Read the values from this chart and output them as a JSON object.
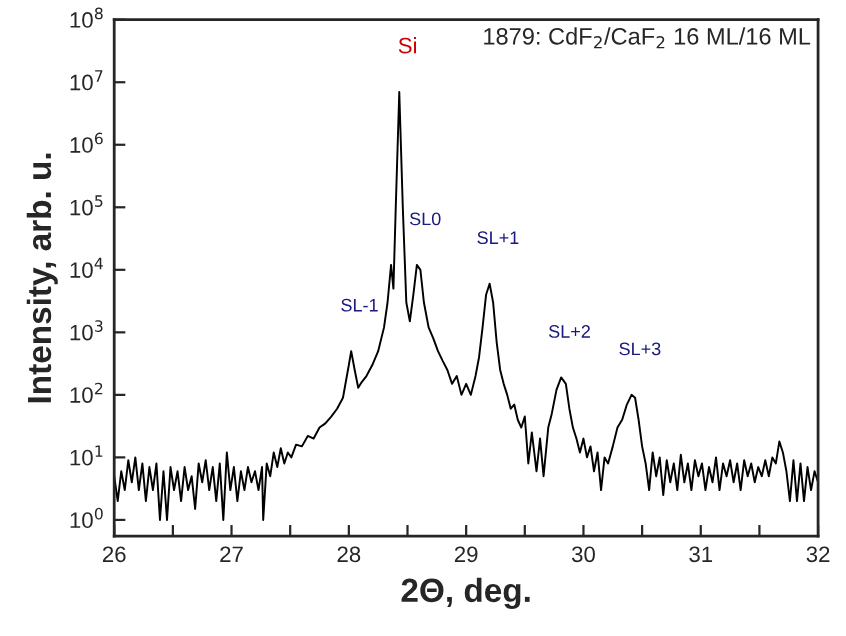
{
  "chart_data": {
    "type": "line",
    "title": "1879: CdF$_{2}$/CaF$_{2}$ 16 ML/16 ML",
    "xlabel": "2Θ, deg.",
    "ylabel": "Intensity, arb. u.",
    "log": "y",
    "grid": false,
    "legend": false,
    "marker": "none",
    "line_style": "solid",
    "xlim": [
      26,
      32
    ],
    "xticks": [
      26,
      {
        "value": 26.5,
        "label": null
      },
      27,
      {
        "value": 27.5,
        "label": null
      },
      28,
      {
        "value": 28.5,
        "label": null
      },
      29,
      {
        "value": 29.5,
        "label": null
      },
      30,
      {
        "value": 30.5,
        "label": null
      },
      31,
      {
        "value": 31.5,
        "label": null
      },
      32
    ],
    "ylim": [
      0.55,
      100000000
    ],
    "yticks": [
      {
        "value": 1,
        "label": "10$^{0}$"
      },
      {
        "value": 10,
        "label": "10$^{1}$"
      },
      {
        "value": 100,
        "label": "10$^{2}$"
      },
      {
        "value": 1000,
        "label": "10$^{3}$"
      },
      {
        "value": 10000,
        "label": "10$^{4}$"
      },
      {
        "value": 100000,
        "label": "10$^{5}$"
      },
      {
        "value": 1000000,
        "label": "10$^{6}$"
      },
      {
        "value": 10000000,
        "label": "10$^{7}$"
      },
      {
        "value": 100000000,
        "label": "10$^{8}$"
      }
    ],
    "annotations": [
      {
        "text": "Si",
        "x": 28.43,
        "y": 7000000
      },
      {
        "text": "SL-1",
        "x": 28.02,
        "y": 500
      },
      {
        "text": "SL0",
        "x": 28.58,
        "y": 12000
      },
      {
        "text": "SL+1",
        "x": 29.2,
        "y": 6000
      },
      {
        "text": "SL+2",
        "x": 29.81,
        "y": 190
      },
      {
        "text": "SL+3",
        "x": 30.41,
        "y": 100
      }
    ],
    "series": [
      {
        "color": "#000000",
        "x": [
          26.0,
          26.03,
          26.06,
          26.09,
          26.12,
          26.15,
          26.18,
          26.21,
          26.24,
          26.27,
          26.3,
          26.33,
          26.36,
          26.39,
          26.42,
          26.45,
          26.48,
          26.51,
          26.54,
          26.57,
          26.6,
          26.63,
          26.66,
          26.69,
          26.72,
          26.75,
          26.78,
          26.81,
          26.84,
          26.87,
          26.9,
          26.93,
          26.96,
          26.99,
          27.02,
          27.05,
          27.08,
          27.11,
          27.14,
          27.17,
          27.2,
          27.23,
          27.26,
          27.27,
          27.3,
          27.33,
          27.36,
          27.39,
          27.42,
          27.45,
          27.48,
          27.51,
          27.55,
          27.6,
          27.65,
          27.7,
          27.75,
          27.8,
          27.85,
          27.9,
          27.95,
          28.0,
          28.02,
          28.05,
          28.08,
          28.11,
          28.15,
          28.2,
          28.25,
          28.3,
          28.33,
          28.36,
          28.38,
          28.4,
          28.43,
          28.46,
          28.49,
          28.52,
          28.55,
          28.58,
          28.61,
          28.64,
          28.68,
          28.72,
          28.76,
          28.8,
          28.84,
          28.88,
          28.92,
          28.96,
          29.0,
          29.04,
          29.08,
          29.11,
          29.14,
          29.17,
          29.2,
          29.23,
          29.26,
          29.29,
          29.32,
          29.35,
          29.38,
          29.41,
          29.44,
          29.47,
          29.5,
          29.53,
          29.56,
          29.6,
          29.63,
          29.66,
          29.7,
          29.73,
          29.77,
          29.81,
          29.85,
          29.88,
          29.91,
          29.94,
          29.97,
          30.0,
          30.03,
          30.06,
          30.09,
          30.12,
          30.15,
          30.18,
          30.21,
          30.25,
          30.29,
          30.33,
          30.37,
          30.41,
          30.44,
          30.47,
          30.5,
          30.53,
          30.56,
          30.59,
          30.62,
          30.65,
          30.68,
          30.71,
          30.74,
          30.77,
          30.8,
          30.83,
          30.86,
          30.89,
          30.92,
          30.95,
          30.98,
          31.01,
          31.04,
          31.07,
          31.1,
          31.13,
          31.16,
          31.19,
          31.22,
          31.25,
          31.28,
          31.31,
          31.34,
          31.37,
          31.4,
          31.43,
          31.46,
          31.49,
          31.52,
          31.55,
          31.58,
          31.61,
          31.64,
          31.67,
          31.7,
          31.73,
          31.76,
          31.79,
          31.82,
          31.85,
          31.88,
          31.91,
          31.94,
          31.97,
          32.0
        ],
        "values": [
          5,
          2,
          6,
          3,
          9,
          4,
          10,
          3,
          8,
          2,
          7,
          3,
          8,
          1,
          6,
          1,
          7,
          3,
          6,
          2,
          7,
          3,
          5,
          1.5,
          8,
          4,
          9,
          3,
          7,
          2,
          8,
          1,
          12,
          3,
          7,
          2,
          6,
          3,
          7,
          4,
          6,
          3,
          7,
          1,
          8,
          5,
          12,
          7,
          14,
          8,
          12,
          10,
          16,
          15,
          22,
          20,
          30,
          35,
          45,
          60,
          90,
          300,
          500,
          250,
          130,
          160,
          200,
          300,
          500,
          1200,
          3000,
          12000,
          5000,
          100000,
          7000000,
          100000,
          3000,
          1500,
          4000,
          12000,
          10000,
          3000,
          1200,
          800,
          500,
          350,
          250,
          150,
          200,
          100,
          150,
          100,
          200,
          400,
          1200,
          4000,
          6000,
          3000,
          700,
          250,
          150,
          100,
          60,
          70,
          40,
          30,
          45,
          8,
          25,
          6,
          20,
          5,
          30,
          50,
          120,
          190,
          150,
          60,
          30,
          20,
          12,
          20,
          10,
          15,
          6,
          12,
          3,
          10,
          8,
          15,
          30,
          40,
          70,
          100,
          90,
          40,
          15,
          8,
          3,
          12,
          5,
          10,
          2.5,
          9,
          4,
          8,
          3,
          11,
          4,
          8,
          3,
          9,
          5,
          8,
          3,
          7,
          4,
          10,
          3,
          8,
          5,
          9,
          4,
          8,
          3,
          9,
          5,
          8,
          4,
          7,
          5,
          9,
          5,
          10,
          8,
          18,
          12,
          6,
          2,
          9,
          2,
          8,
          2,
          7,
          3,
          6,
          4
        ]
      }
    ]
  }
}
